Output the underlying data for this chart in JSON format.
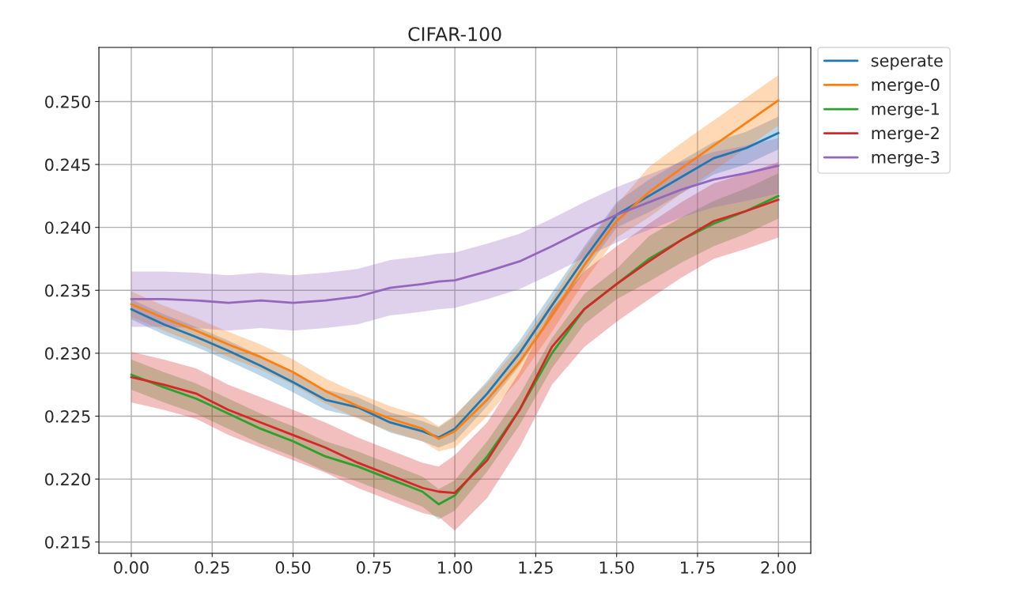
{
  "chart_data": {
    "type": "line",
    "title": "CIFAR-100",
    "x": [
      0,
      0.1,
      0.2,
      0.3,
      0.4,
      0.5,
      0.6,
      0.7,
      0.8,
      0.9,
      0.95,
      1.0,
      1.1,
      1.2,
      1.3,
      1.4,
      1.5,
      1.6,
      1.7,
      1.8,
      1.9,
      2.0
    ],
    "series": [
      {
        "name": "seperate",
        "color": "#1f77b4",
        "values": [
          0.2335,
          0.2323,
          0.2313,
          0.2302,
          0.229,
          0.2277,
          0.2263,
          0.2257,
          0.2245,
          0.2238,
          0.2233,
          0.224,
          0.2268,
          0.23,
          0.2338,
          0.2375,
          0.241,
          0.2425,
          0.244,
          0.2455,
          0.2463,
          0.2475
        ],
        "lower": [
          0.2327,
          0.2315,
          0.2305,
          0.2294,
          0.2282,
          0.2269,
          0.2255,
          0.2249,
          0.2237,
          0.223,
          0.2225,
          0.223,
          0.2258,
          0.229,
          0.2328,
          0.2365,
          0.24,
          0.2412,
          0.2427,
          0.2442,
          0.245,
          0.2462
        ],
        "upper": [
          0.2343,
          0.2331,
          0.2321,
          0.231,
          0.2298,
          0.2285,
          0.2271,
          0.2265,
          0.2253,
          0.2246,
          0.2241,
          0.225,
          0.2278,
          0.231,
          0.2348,
          0.2385,
          0.242,
          0.2438,
          0.2453,
          0.2468,
          0.2476,
          0.2488
        ]
      },
      {
        "name": "merge-0",
        "color": "#ff7f0e",
        "values": [
          0.2339,
          0.2328,
          0.2318,
          0.2307,
          0.2297,
          0.2285,
          0.227,
          0.2258,
          0.2248,
          0.224,
          0.2232,
          0.2238,
          0.2263,
          0.2293,
          0.233,
          0.237,
          0.2405,
          0.2428,
          0.2447,
          0.2465,
          0.2483,
          0.2501
        ],
        "lower": [
          0.2329,
          0.2318,
          0.2308,
          0.2297,
          0.2287,
          0.2275,
          0.226,
          0.2248,
          0.2238,
          0.223,
          0.2222,
          0.2225,
          0.225,
          0.228,
          0.2317,
          0.2357,
          0.2392,
          0.2408,
          0.2427,
          0.2445,
          0.2463,
          0.2481
        ],
        "upper": [
          0.2349,
          0.2338,
          0.2328,
          0.2317,
          0.2307,
          0.2295,
          0.228,
          0.2268,
          0.2258,
          0.225,
          0.2242,
          0.2251,
          0.2276,
          0.2306,
          0.2343,
          0.2383,
          0.2418,
          0.2448,
          0.2467,
          0.2485,
          0.2503,
          0.2521
        ]
      },
      {
        "name": "merge-1",
        "color": "#2ca02c",
        "values": [
          0.2283,
          0.2273,
          0.2264,
          0.2252,
          0.224,
          0.223,
          0.2218,
          0.221,
          0.22,
          0.219,
          0.218,
          0.2187,
          0.2218,
          0.2255,
          0.23,
          0.2335,
          0.2355,
          0.2375,
          0.239,
          0.2403,
          0.2413,
          0.2425
        ],
        "lower": [
          0.2271,
          0.2261,
          0.2252,
          0.224,
          0.2228,
          0.2218,
          0.2206,
          0.2198,
          0.2188,
          0.2178,
          0.2168,
          0.2175,
          0.2206,
          0.2243,
          0.2288,
          0.2323,
          0.2343,
          0.2357,
          0.2372,
          0.2385,
          0.2395,
          0.2407
        ],
        "upper": [
          0.2295,
          0.2285,
          0.2276,
          0.2264,
          0.2252,
          0.2242,
          0.223,
          0.2222,
          0.2212,
          0.2202,
          0.2192,
          0.2199,
          0.223,
          0.2267,
          0.2312,
          0.2347,
          0.2367,
          0.2393,
          0.2408,
          0.2421,
          0.2431,
          0.2443
        ]
      },
      {
        "name": "merge-2",
        "color": "#d62728",
        "values": [
          0.2281,
          0.2275,
          0.2268,
          0.2255,
          0.2245,
          0.2235,
          0.2225,
          0.2213,
          0.2203,
          0.2193,
          0.219,
          0.2189,
          0.2215,
          0.2255,
          0.2305,
          0.2335,
          0.2355,
          0.2373,
          0.239,
          0.2405,
          0.2413,
          0.2422
        ],
        "lower": [
          0.2261,
          0.2255,
          0.2248,
          0.2235,
          0.2225,
          0.2215,
          0.2205,
          0.2193,
          0.2183,
          0.2173,
          0.217,
          0.2159,
          0.2185,
          0.2225,
          0.2275,
          0.2305,
          0.2325,
          0.2343,
          0.236,
          0.2375,
          0.2383,
          0.2392
        ],
        "upper": [
          0.2301,
          0.2295,
          0.2288,
          0.2275,
          0.2265,
          0.2255,
          0.2245,
          0.2233,
          0.2223,
          0.2213,
          0.221,
          0.2219,
          0.2245,
          0.2285,
          0.2335,
          0.2365,
          0.2385,
          0.2403,
          0.242,
          0.2435,
          0.2443,
          0.2452
        ]
      },
      {
        "name": "merge-3",
        "color": "#9467bd",
        "values": [
          0.2343,
          0.2343,
          0.2342,
          0.234,
          0.2342,
          0.234,
          0.2342,
          0.2345,
          0.2352,
          0.2355,
          0.2357,
          0.2358,
          0.2365,
          0.2373,
          0.2385,
          0.2398,
          0.241,
          0.242,
          0.243,
          0.2438,
          0.2443,
          0.2449
        ],
        "lower": [
          0.2321,
          0.2321,
          0.232,
          0.2318,
          0.232,
          0.2318,
          0.232,
          0.2323,
          0.233,
          0.2333,
          0.2335,
          0.2336,
          0.2343,
          0.2351,
          0.2363,
          0.2376,
          0.2388,
          0.2398,
          0.2408,
          0.2416,
          0.2421,
          0.2427
        ],
        "upper": [
          0.2365,
          0.2365,
          0.2364,
          0.2362,
          0.2364,
          0.2362,
          0.2364,
          0.2367,
          0.2374,
          0.2377,
          0.2379,
          0.238,
          0.2387,
          0.2395,
          0.2407,
          0.242,
          0.2432,
          0.2442,
          0.2452,
          0.246,
          0.2465,
          0.2471
        ]
      }
    ],
    "xlim": [
      -0.1,
      2.1
    ],
    "ylim": [
      0.2141,
      0.2543
    ],
    "xticks": [
      {
        "value": 0,
        "label": "0.00"
      },
      {
        "value": 0.25,
        "label": "0.25"
      },
      {
        "value": 0.5,
        "label": "0.50"
      },
      {
        "value": 0.75,
        "label": "0.75"
      },
      {
        "value": 1.0,
        "label": "1.00"
      },
      {
        "value": 1.25,
        "label": "1.25"
      },
      {
        "value": 1.5,
        "label": "1.50"
      },
      {
        "value": 1.75,
        "label": "1.75"
      },
      {
        "value": 2.0,
        "label": "2.00"
      }
    ],
    "yticks": [
      0.215,
      {
        "value": 0.22,
        "label": "0.220"
      },
      0.225,
      {
        "value": 0.23,
        "label": "0.230"
      },
      0.235,
      {
        "value": 0.24,
        "label": "0.240"
      },
      0.245,
      {
        "value": 0.25,
        "label": "0.250"
      }
    ],
    "grid": true,
    "legend": "top right",
    "line_style": "solid",
    "marker": "none"
  }
}
